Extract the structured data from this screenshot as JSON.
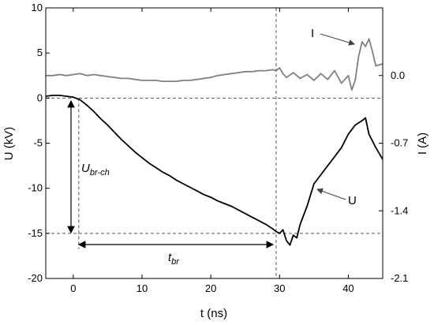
{
  "chart_data": {
    "type": "line",
    "xlabel": "t (ns)",
    "ylabel_left": "U (kV)",
    "ylabel_right": "I (A)",
    "xlim": [
      -4,
      45
    ],
    "ylim_left": [
      -20,
      10
    ],
    "ylim_right": [
      -2.1,
      0.7
    ],
    "x_ticks": [
      0,
      10,
      20,
      30,
      40
    ],
    "y_ticks_left": [
      -20,
      -15,
      -10,
      -5,
      0,
      5,
      10
    ],
    "y_ticks_right": [
      {
        "label": "0.0",
        "value": 0.0
      },
      {
        "label": "-0.7",
        "value": -0.7
      },
      {
        "label": "-1.4",
        "value": -1.4
      },
      {
        "label": "-2.1",
        "value": -2.1
      }
    ],
    "grid": false,
    "reference_lines": {
      "horizontal_dashed_kV": [
        0,
        -15
      ],
      "vertical_dashed_ns": [
        29.5
      ],
      "vertical_dashed_short_ns": [
        0.8
      ]
    },
    "series": [
      {
        "name": "U",
        "axis": "left",
        "color": "#000000",
        "x": [
          -4,
          -3,
          -2,
          -1,
          0,
          1,
          2,
          3,
          4,
          5,
          6,
          7,
          8,
          9,
          10,
          11,
          12,
          13,
          14,
          15,
          16,
          17,
          18,
          19,
          20,
          21,
          22,
          23,
          24,
          25,
          26,
          27,
          28,
          29,
          29.5,
          30,
          30.5,
          31,
          31.5,
          32,
          32.5,
          33,
          34,
          35,
          36,
          37,
          38,
          39,
          40,
          41,
          42,
          42.5,
          43,
          44,
          45
        ],
        "values": [
          0.2,
          0.3,
          0.3,
          0.2,
          0.1,
          -0.2,
          -0.8,
          -1.5,
          -2.3,
          -3.0,
          -3.8,
          -4.6,
          -5.3,
          -6.0,
          -6.6,
          -7.2,
          -7.7,
          -8.2,
          -8.6,
          -9.1,
          -9.5,
          -9.9,
          -10.3,
          -10.7,
          -11.0,
          -11.4,
          -11.7,
          -12.0,
          -12.4,
          -12.8,
          -13.2,
          -13.6,
          -14.0,
          -14.5,
          -14.8,
          -15.0,
          -14.6,
          -15.8,
          -16.3,
          -15.2,
          -15.5,
          -14.0,
          -12.0,
          -9.5,
          -8.5,
          -7.5,
          -6.5,
          -5.5,
          -4.0,
          -3.0,
          -2.5,
          -2.2,
          -4.0,
          -5.5,
          -6.8
        ]
      },
      {
        "name": "I",
        "axis": "right",
        "color": "#808080",
        "x": [
          -4,
          -3,
          -2,
          -1,
          0,
          1,
          2,
          3,
          4,
          5,
          6,
          7,
          8,
          9,
          10,
          11,
          12,
          13,
          14,
          15,
          16,
          17,
          18,
          19,
          20,
          21,
          22,
          23,
          24,
          25,
          26,
          27,
          28,
          29,
          29.5,
          30,
          30.5,
          31,
          32,
          33,
          34,
          35,
          36,
          37,
          38,
          39,
          40,
          40.5,
          41,
          41.5,
          42,
          42.5,
          43,
          43.5,
          44,
          45
        ],
        "values": [
          0.0,
          0.0,
          0.01,
          0.0,
          0.01,
          0.02,
          0.0,
          0.01,
          0.0,
          -0.01,
          -0.02,
          -0.03,
          -0.03,
          -0.04,
          -0.05,
          -0.05,
          -0.05,
          -0.06,
          -0.06,
          -0.06,
          -0.05,
          -0.05,
          -0.04,
          -0.03,
          -0.02,
          0.0,
          0.01,
          0.02,
          0.03,
          0.04,
          0.04,
          0.05,
          0.05,
          0.06,
          0.05,
          0.08,
          0.02,
          -0.02,
          0.03,
          -0.03,
          0.01,
          -0.05,
          0.02,
          -0.04,
          0.05,
          -0.08,
          0.0,
          -0.15,
          -0.05,
          0.2,
          0.35,
          0.3,
          0.38,
          0.25,
          0.1,
          0.12
        ]
      }
    ],
    "annotations": [
      {
        "text": "I",
        "kind": "series_label"
      },
      {
        "text": "U",
        "kind": "series_label"
      },
      {
        "text": "U",
        "sub": "br-ch",
        "kind": "measurement"
      },
      {
        "text": "t",
        "sub": "br",
        "kind": "measurement"
      }
    ]
  }
}
